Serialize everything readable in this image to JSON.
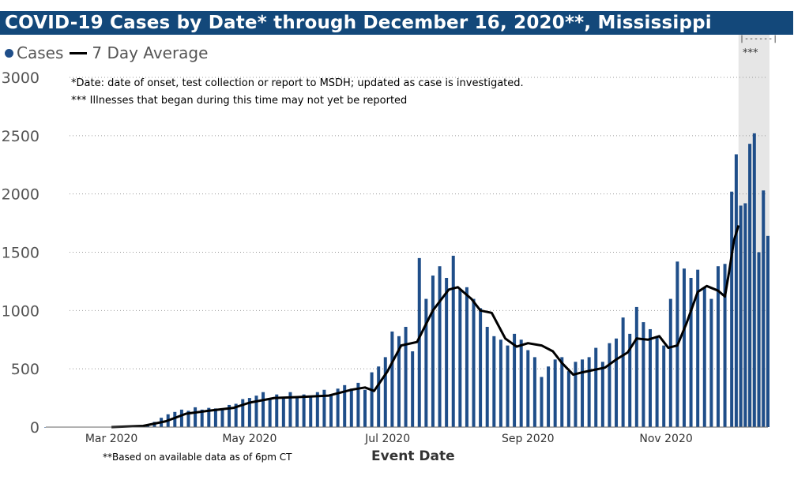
{
  "title": "COVID-19 Cases by Date* through December 16, 2020**, Mississippi",
  "legend": {
    "cases": "Cases",
    "average": "7 Day Average"
  },
  "notes": {
    "date_note": "*Date: date of onset, test collection or report to MSDH; updated as case is investigated.",
    "illness_note": "*** Illnesses that began during this time may not yet be reported",
    "footnote": "**Based on available data as of 6pm CT",
    "bracket": "|------|",
    "stars": "***"
  },
  "colors": {
    "title_bg": "#13487a",
    "bars": "#1f4e89",
    "average": "#000000",
    "shade": "#e6e6e6",
    "grid": "#999999"
  },
  "chart_data": {
    "type": "bar",
    "title": "COVID-19 Cases by Date* through December 16, 2020**, Mississippi",
    "xlabel": "Event Date",
    "ylabel": "",
    "ylim": [
      0,
      3000
    ],
    "yticks": [
      0,
      500,
      1000,
      1500,
      2000,
      2500,
      3000
    ],
    "x_range": [
      "2020-02-01",
      "2020-12-16"
    ],
    "xticks": [
      {
        "date": "2020-03-01",
        "label": "Mar 2020"
      },
      {
        "date": "2020-05-01",
        "label": "May 2020"
      },
      {
        "date": "2020-07-01",
        "label": "Jul 2020"
      },
      {
        "date": "2020-09-01",
        "label": "Sep 2020"
      },
      {
        "date": "2020-11-01",
        "label": "Nov 2020"
      }
    ],
    "shaded_range": [
      "2020-12-03",
      "2020-12-16"
    ],
    "grid": "horizontal dotted",
    "legend_position": "top-left",
    "series": [
      {
        "name": "Cases",
        "type": "bar",
        "points": [
          [
            "2020-02-01",
            0
          ],
          [
            "2020-02-04",
            0
          ],
          [
            "2020-02-07",
            0
          ],
          [
            "2020-02-10",
            0
          ],
          [
            "2020-02-13",
            0
          ],
          [
            "2020-02-16",
            0
          ],
          [
            "2020-02-19",
            0
          ],
          [
            "2020-02-22",
            0
          ],
          [
            "2020-02-25",
            0
          ],
          [
            "2020-02-28",
            0
          ],
          [
            "2020-03-02",
            1
          ],
          [
            "2020-03-05",
            2
          ],
          [
            "2020-03-08",
            4
          ],
          [
            "2020-03-11",
            8
          ],
          [
            "2020-03-14",
            12
          ],
          [
            "2020-03-17",
            25
          ],
          [
            "2020-03-20",
            45
          ],
          [
            "2020-03-23",
            80
          ],
          [
            "2020-03-26",
            110
          ],
          [
            "2020-03-29",
            130
          ],
          [
            "2020-04-01",
            150
          ],
          [
            "2020-04-04",
            140
          ],
          [
            "2020-04-07",
            170
          ],
          [
            "2020-04-10",
            150
          ],
          [
            "2020-04-13",
            165
          ],
          [
            "2020-04-16",
            160
          ],
          [
            "2020-04-19",
            155
          ],
          [
            "2020-04-22",
            190
          ],
          [
            "2020-04-25",
            200
          ],
          [
            "2020-04-28",
            240
          ],
          [
            "2020-05-01",
            250
          ],
          [
            "2020-05-04",
            270
          ],
          [
            "2020-05-07",
            300
          ],
          [
            "2020-05-10",
            240
          ],
          [
            "2020-05-13",
            280
          ],
          [
            "2020-05-16",
            260
          ],
          [
            "2020-05-19",
            300
          ],
          [
            "2020-05-22",
            260
          ],
          [
            "2020-05-25",
            280
          ],
          [
            "2020-05-28",
            260
          ],
          [
            "2020-05-31",
            300
          ],
          [
            "2020-06-03",
            320
          ],
          [
            "2020-06-06",
            280
          ],
          [
            "2020-06-09",
            330
          ],
          [
            "2020-06-12",
            360
          ],
          [
            "2020-06-15",
            330
          ],
          [
            "2020-06-18",
            380
          ],
          [
            "2020-06-21",
            320
          ],
          [
            "2020-06-24",
            470
          ],
          [
            "2020-06-27",
            520
          ],
          [
            "2020-06-30",
            600
          ],
          [
            "2020-07-03",
            820
          ],
          [
            "2020-07-06",
            780
          ],
          [
            "2020-07-09",
            860
          ],
          [
            "2020-07-12",
            650
          ],
          [
            "2020-07-15",
            1450
          ],
          [
            "2020-07-18",
            1100
          ],
          [
            "2020-07-21",
            1300
          ],
          [
            "2020-07-24",
            1380
          ],
          [
            "2020-07-27",
            1280
          ],
          [
            "2020-07-30",
            1470
          ],
          [
            "2020-08-02",
            1180
          ],
          [
            "2020-08-05",
            1200
          ],
          [
            "2020-08-08",
            1100
          ],
          [
            "2020-08-11",
            1020
          ],
          [
            "2020-08-14",
            860
          ],
          [
            "2020-08-17",
            780
          ],
          [
            "2020-08-20",
            750
          ],
          [
            "2020-08-23",
            700
          ],
          [
            "2020-08-26",
            800
          ],
          [
            "2020-08-29",
            750
          ],
          [
            "2020-09-01",
            660
          ],
          [
            "2020-09-04",
            600
          ],
          [
            "2020-09-07",
            430
          ],
          [
            "2020-09-10",
            520
          ],
          [
            "2020-09-13",
            580
          ],
          [
            "2020-09-16",
            600
          ],
          [
            "2020-09-19",
            480
          ],
          [
            "2020-09-22",
            560
          ],
          [
            "2020-09-25",
            580
          ],
          [
            "2020-09-28",
            600
          ],
          [
            "2020-10-01",
            680
          ],
          [
            "2020-10-04",
            560
          ],
          [
            "2020-10-07",
            720
          ],
          [
            "2020-10-10",
            760
          ],
          [
            "2020-10-13",
            940
          ],
          [
            "2020-10-16",
            800
          ],
          [
            "2020-10-19",
            1030
          ],
          [
            "2020-10-22",
            900
          ],
          [
            "2020-10-25",
            840
          ],
          [
            "2020-10-28",
            780
          ],
          [
            "2020-10-31",
            700
          ],
          [
            "2020-11-03",
            1100
          ],
          [
            "2020-11-06",
            1420
          ],
          [
            "2020-11-09",
            1360
          ],
          [
            "2020-11-12",
            1280
          ],
          [
            "2020-11-15",
            1350
          ],
          [
            "2020-11-18",
            1200
          ],
          [
            "2020-11-21",
            1100
          ],
          [
            "2020-11-24",
            1380
          ],
          [
            "2020-11-27",
            1400
          ],
          [
            "2020-11-30",
            2020
          ],
          [
            "2020-12-02",
            2340
          ],
          [
            "2020-12-04",
            1900
          ],
          [
            "2020-12-06",
            1920
          ],
          [
            "2020-12-08",
            2430
          ],
          [
            "2020-12-10",
            2520
          ],
          [
            "2020-12-12",
            1500
          ],
          [
            "2020-12-14",
            2030
          ],
          [
            "2020-12-16",
            1640
          ]
        ]
      },
      {
        "name": "7 Day Average",
        "type": "line",
        "points": [
          [
            "2020-03-01",
            0
          ],
          [
            "2020-03-15",
            10
          ],
          [
            "2020-03-25",
            50
          ],
          [
            "2020-04-03",
            115
          ],
          [
            "2020-04-13",
            140
          ],
          [
            "2020-04-24",
            165
          ],
          [
            "2020-05-01",
            210
          ],
          [
            "2020-05-12",
            250
          ],
          [
            "2020-05-25",
            260
          ],
          [
            "2020-06-05",
            270
          ],
          [
            "2020-06-15",
            320
          ],
          [
            "2020-06-21",
            340
          ],
          [
            "2020-06-25",
            310
          ],
          [
            "2020-07-01",
            480
          ],
          [
            "2020-07-07",
            700
          ],
          [
            "2020-07-14",
            730
          ],
          [
            "2020-07-21",
            1000
          ],
          [
            "2020-07-28",
            1180
          ],
          [
            "2020-08-01",
            1200
          ],
          [
            "2020-08-07",
            1100
          ],
          [
            "2020-08-11",
            1000
          ],
          [
            "2020-08-16",
            980
          ],
          [
            "2020-08-22",
            760
          ],
          [
            "2020-08-27",
            690
          ],
          [
            "2020-09-01",
            720
          ],
          [
            "2020-09-07",
            700
          ],
          [
            "2020-09-12",
            650
          ],
          [
            "2020-09-16",
            550
          ],
          [
            "2020-09-21",
            450
          ],
          [
            "2020-09-25",
            470
          ],
          [
            "2020-09-30",
            490
          ],
          [
            "2020-10-05",
            510
          ],
          [
            "2020-10-10",
            580
          ],
          [
            "2020-10-15",
            640
          ],
          [
            "2020-10-19",
            760
          ],
          [
            "2020-10-24",
            750
          ],
          [
            "2020-10-29",
            780
          ],
          [
            "2020-11-02",
            680
          ],
          [
            "2020-11-06",
            700
          ],
          [
            "2020-11-10",
            890
          ],
          [
            "2020-11-15",
            1160
          ],
          [
            "2020-11-19",
            1210
          ],
          [
            "2020-11-24",
            1170
          ],
          [
            "2020-11-27",
            1120
          ],
          [
            "2020-11-29",
            1350
          ],
          [
            "2020-12-01",
            1600
          ],
          [
            "2020-12-03",
            1730
          ]
        ]
      }
    ]
  }
}
